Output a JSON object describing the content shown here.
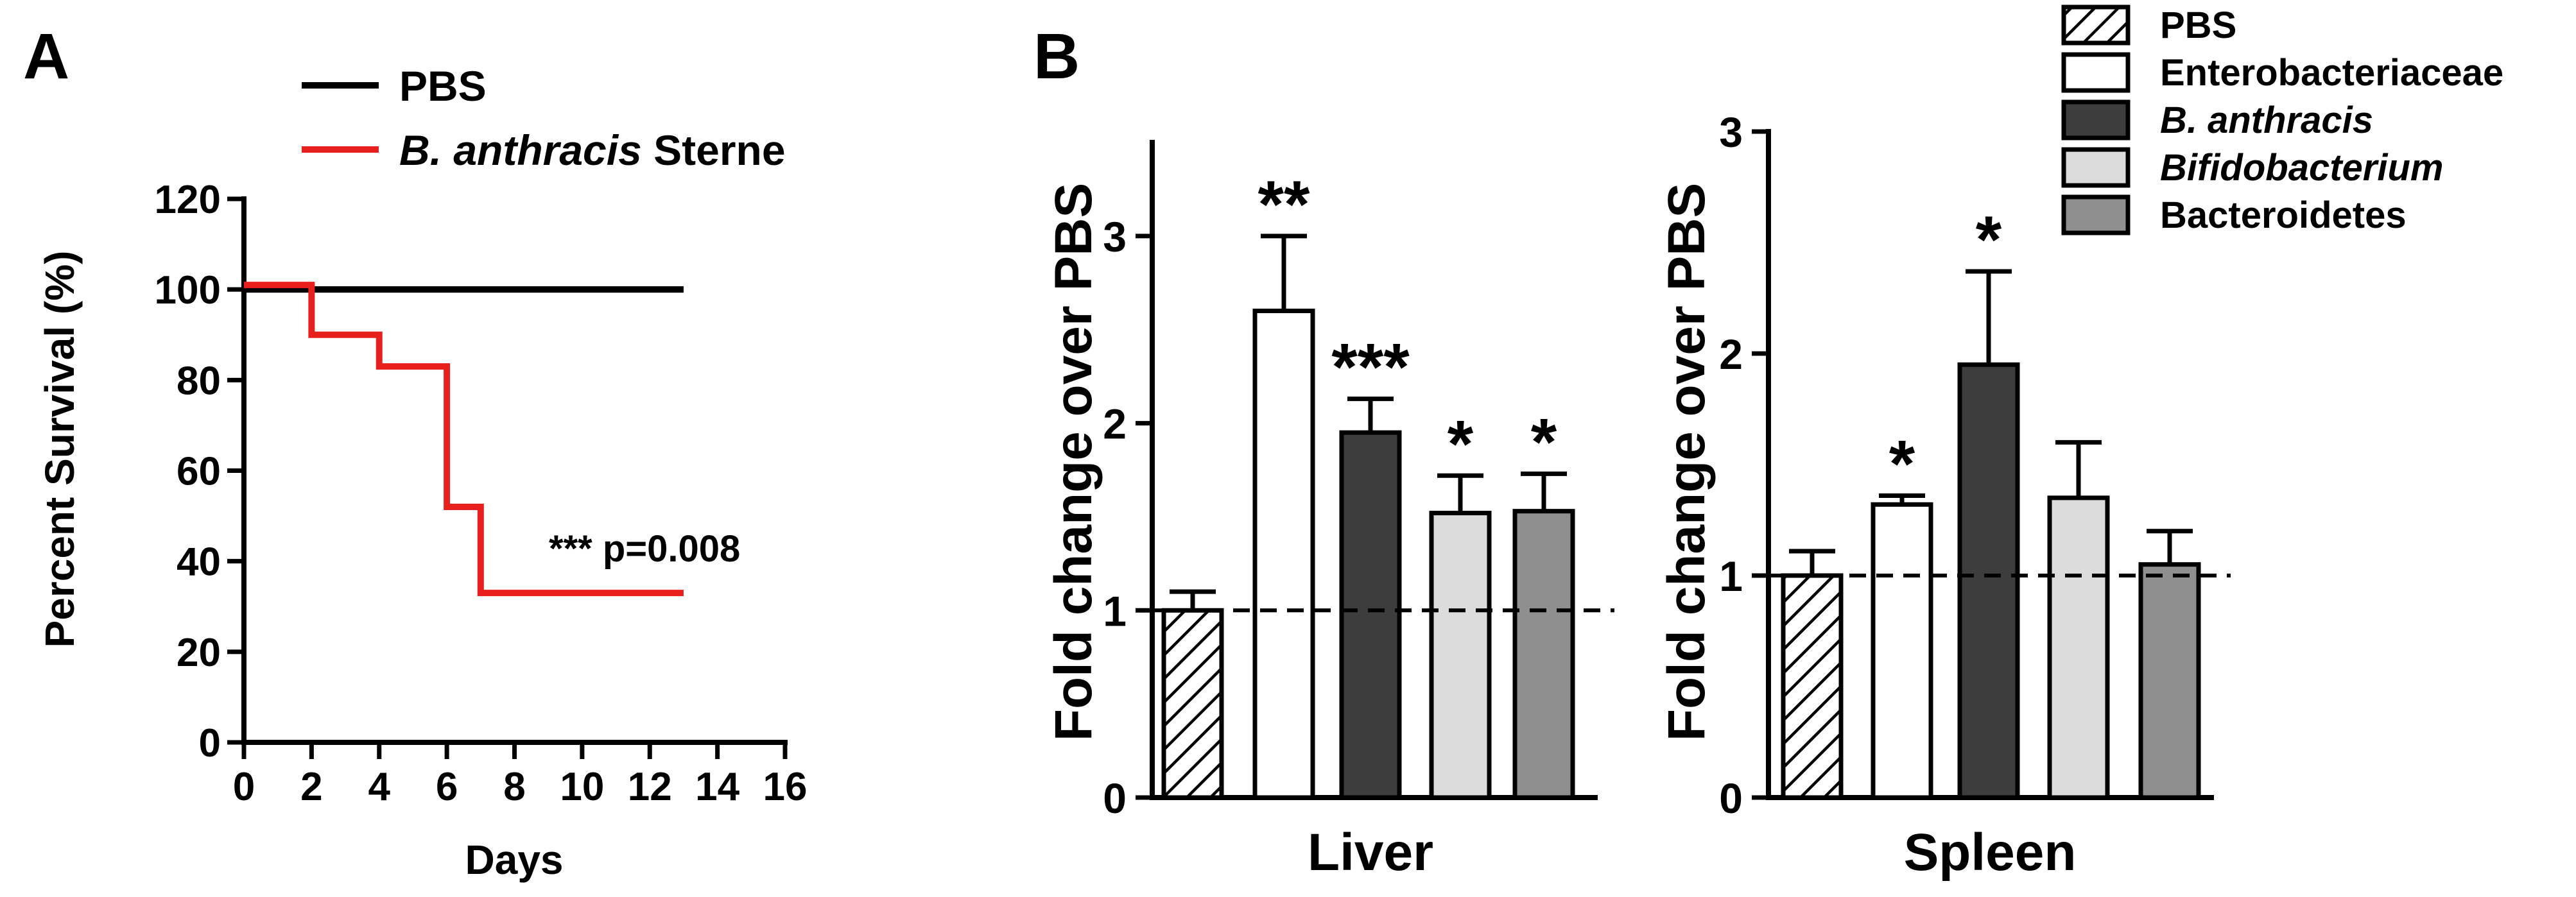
{
  "panel_a": {
    "label": "A"
  },
  "panel_b": {
    "label": "B"
  },
  "chart_data": [
    {
      "type": "line",
      "step": true,
      "xlabel": "Days",
      "ylabel": "Percent Survival (%)",
      "xlim": [
        0,
        16
      ],
      "ylim": [
        0,
        120
      ],
      "xticks": [
        0,
        2,
        4,
        6,
        8,
        10,
        12,
        14,
        16
      ],
      "yticks": [
        0,
        20,
        40,
        60,
        80,
        100,
        120
      ],
      "legend_position": "top",
      "series": [
        {
          "name": "PBS",
          "color": "#000000",
          "x": [
            0,
            13
          ],
          "y": [
            100,
            100
          ]
        },
        {
          "name_italic": "B. anthracis",
          "name_rest": "Sterne",
          "color": "#e8201d",
          "x": [
            0,
            2,
            4,
            6,
            7,
            13
          ],
          "y": [
            101,
            90,
            83,
            52,
            33,
            33
          ]
        }
      ],
      "annotation": "*** p=0.008"
    },
    {
      "type": "bar",
      "xlabel": "Liver",
      "ylabel": "Fold change over PBS",
      "ylim": [
        0,
        3.5
      ],
      "yticks": [
        0,
        1,
        2,
        3
      ],
      "reference_line": 1,
      "categories": [
        "PBS",
        "Enterobacteriaceae",
        "B. anthracis",
        "Bifidobacterium",
        "Bacteroidetes"
      ],
      "values": [
        1.0,
        2.6,
        1.95,
        1.52,
        1.53
      ],
      "errors": [
        0.1,
        0.4,
        0.18,
        0.2,
        0.2
      ],
      "significance": [
        "",
        "**",
        "***",
        "*",
        "*"
      ]
    },
    {
      "type": "bar",
      "xlabel": "Spleen",
      "ylabel": "Fold change over PBS",
      "ylim": [
        0,
        3
      ],
      "yticks": [
        0,
        1,
        2,
        3
      ],
      "reference_line": 1,
      "categories": [
        "PBS",
        "Enterobacteriaceae",
        "B. anthracis",
        "Bifidobacterium",
        "Bacteroidetes"
      ],
      "values": [
        1.0,
        1.32,
        1.95,
        1.35,
        1.05
      ],
      "errors": [
        0.11,
        0.04,
        0.42,
        0.25,
        0.15
      ],
      "significance": [
        "",
        "*",
        "*",
        "",
        ""
      ]
    }
  ],
  "bar_legend": [
    {
      "label": "PBS",
      "fill": "hatch",
      "italic": false
    },
    {
      "label": "Enterobacteriaceae",
      "fill": "#ffffff",
      "italic": false
    },
    {
      "label": "B. anthracis",
      "fill": "#3d3d3d",
      "italic": true
    },
    {
      "label": "Bifidobacterium",
      "fill": "#dcdcdc",
      "italic": true
    },
    {
      "label": "Bacteroidetes",
      "fill": "#8f8f8f",
      "italic": false
    }
  ]
}
